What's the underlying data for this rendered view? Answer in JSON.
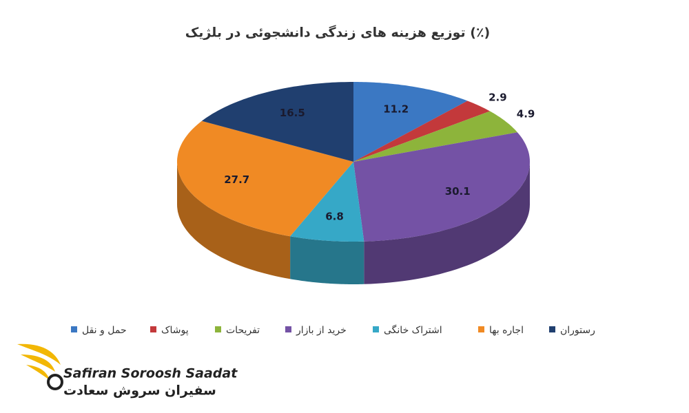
{
  "chart_data": {
    "type": "pie",
    "title": "توزیع هزینه های زندگی دانشجوئی در بلژیک (٪)",
    "categories": [
      "حمل و نقل",
      "پوشاک",
      "تفریحات",
      "خرید از بازار",
      "اشتراک خانگی",
      "اجاره بها",
      "رستوران"
    ],
    "values": [
      11.2,
      2.9,
      4.9,
      30.1,
      6.8,
      27.7,
      16.5
    ],
    "colors": [
      "#3b78c3",
      "#c3393b",
      "#8db43b",
      "#7452a5",
      "#36a8c7",
      "#f08a24",
      "#203f6f"
    ],
    "legend": "bottom"
  },
  "logo": {
    "name_en": "Safiran Soroosh Saadat",
    "name_fa": "سفیران سروش سعادت"
  }
}
